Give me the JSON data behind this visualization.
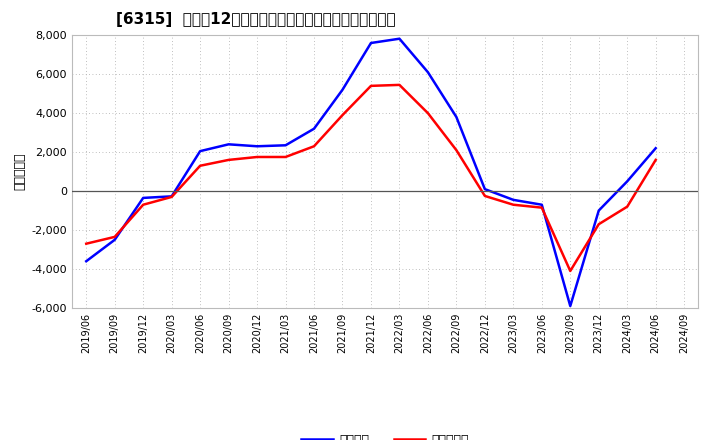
{
  "title": "[6315]  利益だ12か月移動合計の対前年同期増減額の推移",
  "ylabel": "（百万円）",
  "legend_blue": "経常利益",
  "legend_red": "当期累利益",
  "ylim": [
    -6000,
    8000
  ],
  "yticks": [
    -6000,
    -4000,
    -2000,
    0,
    2000,
    4000,
    6000,
    8000
  ],
  "x_labels": [
    "2019/06",
    "2019/09",
    "2019/12",
    "2020/03",
    "2020/06",
    "2020/09",
    "2020/12",
    "2021/03",
    "2021/06",
    "2021/09",
    "2021/12",
    "2022/03",
    "2022/06",
    "2022/09",
    "2022/12",
    "2023/03",
    "2023/06",
    "2023/09",
    "2023/12",
    "2024/03",
    "2024/06",
    "2024/09"
  ],
  "blue_values": [
    -3600,
    -2500,
    -350,
    -270,
    2050,
    2400,
    2300,
    2350,
    3200,
    5200,
    7600,
    7820,
    6100,
    3800,
    100,
    -450,
    -700,
    -5900,
    -1000,
    500,
    2200,
    null
  ],
  "red_values": [
    -2700,
    -2350,
    -700,
    -300,
    1300,
    1600,
    1750,
    1750,
    2300,
    3900,
    5400,
    5450,
    4000,
    2100,
    -250,
    -700,
    -850,
    -4100,
    -1700,
    -800,
    1600,
    null
  ],
  "blue_color": "#0000ff",
  "red_color": "#ff0000",
  "line_width": 1.8,
  "background_color": "#ffffff",
  "plot_bg_color": "#ffffff",
  "grid_color": "#aaaaaa",
  "zero_line_color": "#555555"
}
